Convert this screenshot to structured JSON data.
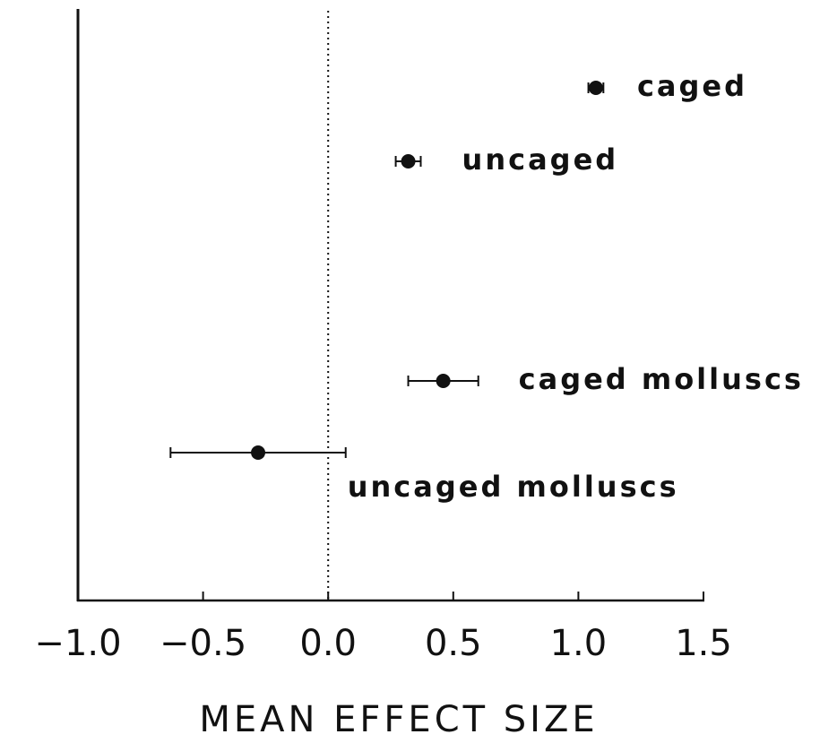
{
  "chart_data": {
    "type": "forest",
    "xlabel": "MEAN EFFECT SIZE",
    "categories": [
      "caged",
      "uncaged",
      "caged molluscs",
      "uncaged molluscs"
    ],
    "values": [
      1.07,
      0.32,
      0.46,
      -0.28
    ],
    "errors": [
      0.03,
      0.05,
      0.14,
      0.35
    ],
    "color": "#111111",
    "reference_line": 0,
    "xlim": [
      -1.0,
      1.5
    ],
    "xticks": [
      {
        "value": -1.0,
        "label": "−1.0"
      },
      {
        "value": -0.5,
        "label": "−0.5"
      },
      {
        "value": 0,
        "label": "0.0"
      },
      {
        "value": 0.5,
        "label": "0.5"
      },
      {
        "value": 1.0,
        "label": "1.0"
      },
      {
        "value": 1.5,
        "label": "1.5"
      }
    ]
  }
}
